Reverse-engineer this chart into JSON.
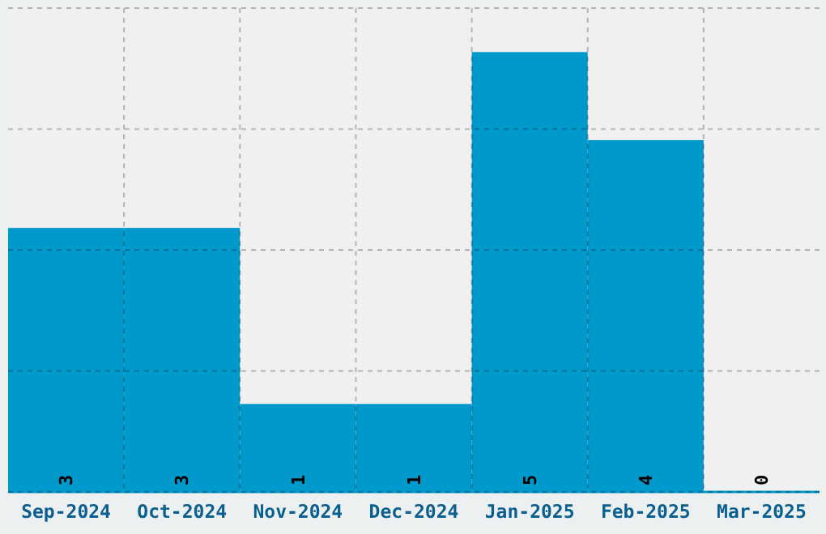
{
  "chart_data": {
    "type": "bar",
    "categories": [
      "Sep-2024",
      "Oct-2024",
      "Nov-2024",
      "Dec-2024",
      "Jan-2025",
      "Feb-2025",
      "Mar-2025"
    ],
    "values": [
      3,
      3,
      1,
      1,
      5,
      4,
      0
    ],
    "color": "#0099cc",
    "data_labels": true,
    "grid": true,
    "ylim": [
      0,
      5.5
    ],
    "yticks": [
      {
        "value": 0,
        "label": null
      },
      {
        "value": 1.375,
        "label": null
      },
      {
        "value": 2.75,
        "label": null
      },
      {
        "value": 4.125,
        "label": null
      },
      {
        "value": 5.5,
        "label": null
      }
    ],
    "tick_labels": "x"
  }
}
